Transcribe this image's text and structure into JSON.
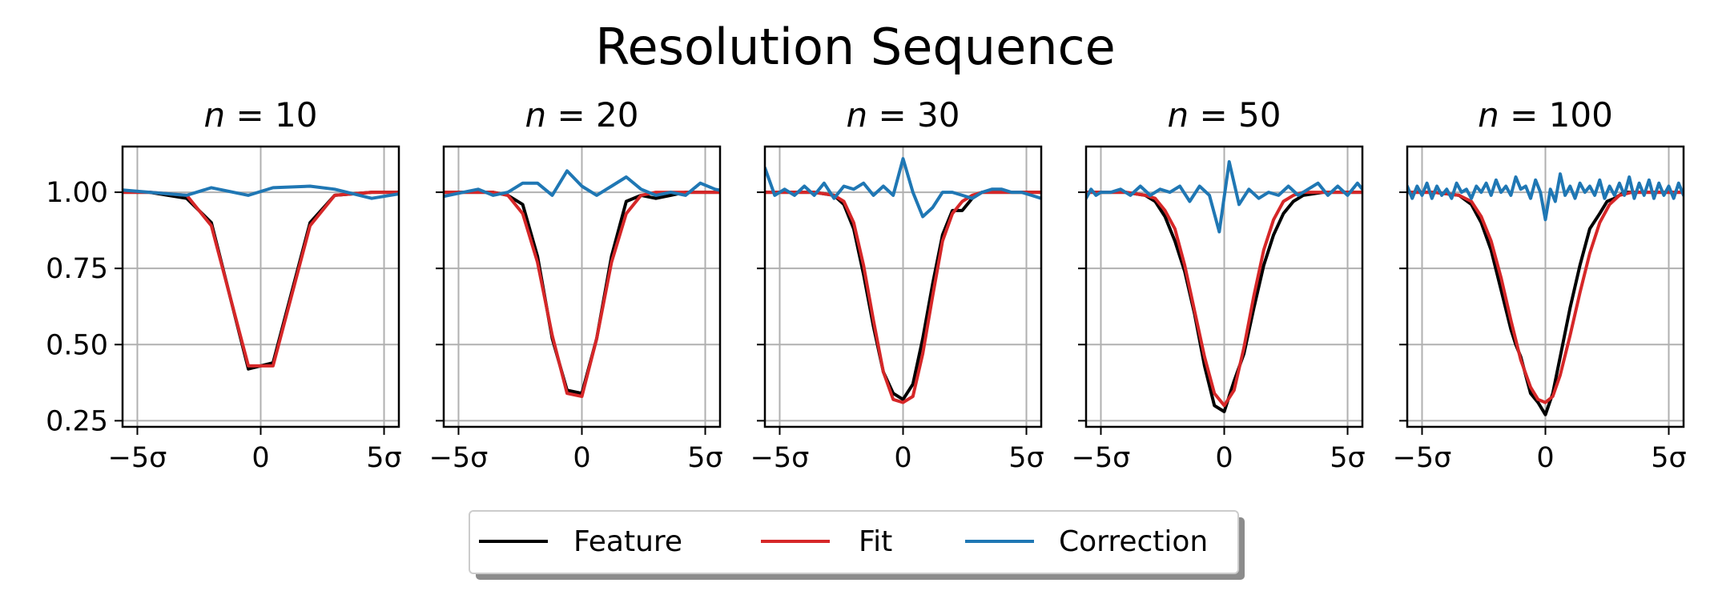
{
  "figure": {
    "title": "Resolution Sequence",
    "x_tick_labels": [
      "−5σ",
      "0",
      "5σ"
    ],
    "y_tick_labels": [
      "0.25",
      "0.50",
      "0.75",
      "1.00"
    ]
  },
  "legend": {
    "placement": "bottom-center",
    "entries": [
      {
        "label": "Feature",
        "color": "#000000"
      },
      {
        "label": "Fit",
        "color": "#d62728"
      },
      {
        "label": "Correction",
        "color": "#1f77b4"
      }
    ]
  },
  "chart_data": [
    {
      "type": "line",
      "title_var": "n",
      "title_value": "= 10",
      "xlim": [
        -5.6,
        5.6
      ],
      "ylim": [
        0.23,
        1.15
      ],
      "grid": true,
      "series": [
        {
          "name": "Feature",
          "color": "#000000",
          "x": [
            -6.0,
            -4.5,
            -3.0,
            -2.0,
            -0.5,
            0.5,
            2.0,
            3.0,
            4.5,
            6.0
          ],
          "y": [
            1.0,
            1.0,
            0.98,
            0.9,
            0.42,
            0.44,
            0.9,
            0.99,
            1.0,
            1.0
          ]
        },
        {
          "name": "Fit",
          "color": "#d62728",
          "x": [
            -6.0,
            -4.5,
            -3.0,
            -2.0,
            -0.5,
            0.5,
            2.0,
            3.0,
            4.5,
            6.0
          ],
          "y": [
            1.0,
            1.0,
            0.99,
            0.89,
            0.43,
            0.43,
            0.89,
            0.99,
            1.0,
            1.0
          ]
        },
        {
          "name": "Correction",
          "color": "#1f77b4",
          "x": [
            -6.0,
            -4.5,
            -3.0,
            -2.0,
            -0.5,
            0.5,
            2.0,
            3.0,
            4.5,
            6.0
          ],
          "y": [
            1.01,
            1.0,
            0.99,
            1.015,
            0.99,
            1.015,
            1.02,
            1.01,
            0.98,
            1.0
          ]
        }
      ]
    },
    {
      "type": "line",
      "title_var": "n",
      "title_value": "= 20",
      "xlim": [
        -5.6,
        5.6
      ],
      "ylim": [
        0.23,
        1.15
      ],
      "grid": true,
      "series": [
        {
          "name": "Feature",
          "color": "#000000",
          "x": [
            -6.0,
            -4.8,
            -4.2,
            -3.6,
            -3.0,
            -2.4,
            -1.8,
            -1.2,
            -0.6,
            0.0,
            0.6,
            1.2,
            1.8,
            2.4,
            3.0,
            3.6,
            4.2,
            4.8,
            5.4,
            6.0
          ],
          "y": [
            1.0,
            1.0,
            1.0,
            1.0,
            0.99,
            0.96,
            0.79,
            0.52,
            0.35,
            0.34,
            0.52,
            0.79,
            0.97,
            0.99,
            0.98,
            0.99,
            1.0,
            1.0,
            1.0,
            1.0
          ]
        },
        {
          "name": "Fit",
          "color": "#d62728",
          "x": [
            -6.0,
            -4.8,
            -4.2,
            -3.6,
            -3.0,
            -2.4,
            -1.8,
            -1.2,
            -0.6,
            0.0,
            0.6,
            1.2,
            1.8,
            2.4,
            3.0,
            3.6,
            4.2,
            4.8,
            5.4,
            6.0
          ],
          "y": [
            1.0,
            1.0,
            1.0,
            1.0,
            0.99,
            0.93,
            0.77,
            0.53,
            0.34,
            0.33,
            0.52,
            0.77,
            0.93,
            0.99,
            1.0,
            1.0,
            1.0,
            1.0,
            1.0,
            1.0
          ]
        },
        {
          "name": "Correction",
          "color": "#1f77b4",
          "x": [
            -6.0,
            -4.8,
            -4.2,
            -3.6,
            -3.0,
            -2.4,
            -1.8,
            -1.2,
            -0.6,
            0.0,
            0.6,
            1.2,
            1.8,
            2.4,
            3.0,
            3.6,
            4.2,
            4.8,
            5.4,
            6.0
          ],
          "y": [
            0.98,
            1.0,
            1.01,
            0.99,
            1.0,
            1.03,
            1.03,
            0.99,
            1.07,
            1.02,
            0.99,
            1.02,
            1.05,
            1.01,
            0.99,
            1.0,
            0.99,
            1.03,
            1.01,
            1.0
          ]
        }
      ]
    },
    {
      "type": "line",
      "title_var": "n",
      "title_value": "= 30",
      "xlim": [
        -5.6,
        5.6
      ],
      "ylim": [
        0.23,
        1.15
      ],
      "grid": true,
      "series": [
        {
          "name": "Feature",
          "color": "#000000",
          "x": [
            -6.0,
            -5.2,
            -4.4,
            -3.6,
            -2.8,
            -2.4,
            -2.0,
            -1.6,
            -1.2,
            -0.8,
            -0.4,
            0.0,
            0.4,
            0.8,
            1.2,
            1.6,
            2.0,
            2.4,
            2.8,
            3.2,
            3.6,
            4.4,
            5.2,
            6.0
          ],
          "y": [
            1.0,
            1.0,
            1.0,
            1.0,
            0.99,
            0.96,
            0.88,
            0.73,
            0.56,
            0.41,
            0.34,
            0.32,
            0.37,
            0.52,
            0.7,
            0.86,
            0.94,
            0.94,
            0.98,
            1.0,
            1.0,
            1.0,
            1.0,
            1.0
          ]
        },
        {
          "name": "Fit",
          "color": "#d62728",
          "x": [
            -6.0,
            -5.2,
            -4.4,
            -3.6,
            -2.8,
            -2.4,
            -2.0,
            -1.6,
            -1.2,
            -0.8,
            -0.4,
            0.0,
            0.4,
            0.8,
            1.2,
            1.6,
            2.0,
            2.4,
            2.8,
            3.2,
            3.6,
            4.4,
            5.2,
            6.0
          ],
          "y": [
            1.0,
            1.0,
            1.0,
            1.0,
            0.99,
            0.97,
            0.9,
            0.76,
            0.58,
            0.41,
            0.32,
            0.31,
            0.33,
            0.47,
            0.66,
            0.84,
            0.93,
            0.97,
            0.99,
            1.0,
            1.0,
            1.0,
            1.0,
            1.0
          ]
        },
        {
          "name": "Correction",
          "color": "#1f77b4",
          "x": [
            -6.0,
            -5.6,
            -5.2,
            -4.8,
            -4.4,
            -4.0,
            -3.6,
            -3.2,
            -2.8,
            -2.4,
            -2.0,
            -1.6,
            -1.2,
            -0.8,
            -0.4,
            0.0,
            0.4,
            0.8,
            1.2,
            1.6,
            2.0,
            2.4,
            2.8,
            3.2,
            3.6,
            4.0,
            4.4,
            4.8,
            5.2,
            5.6,
            6.0
          ],
          "y": [
            1.0,
            1.08,
            0.99,
            1.01,
            0.99,
            1.02,
            0.99,
            1.03,
            0.98,
            1.02,
            1.01,
            1.03,
            0.99,
            1.02,
            0.99,
            1.11,
            1.0,
            0.92,
            0.95,
            1.0,
            1.0,
            0.99,
            0.98,
            1.0,
            1.01,
            1.01,
            1.0,
            1.0,
            0.99,
            0.98,
            0.97
          ]
        }
      ]
    },
    {
      "type": "line",
      "title_var": "n",
      "title_value": "= 50",
      "xlim": [
        -5.6,
        5.6
      ],
      "ylim": [
        0.23,
        1.15
      ],
      "grid": true,
      "series": [
        {
          "name": "Feature",
          "color": "#000000",
          "x": [
            -6.0,
            -5.0,
            -4.0,
            -3.2,
            -2.8,
            -2.4,
            -2.0,
            -1.6,
            -1.2,
            -0.8,
            -0.4,
            0.0,
            0.4,
            0.8,
            1.2,
            1.6,
            2.0,
            2.4,
            2.8,
            3.2,
            4.0,
            5.0,
            6.0
          ],
          "y": [
            1.0,
            1.0,
            1.0,
            0.99,
            0.97,
            0.92,
            0.84,
            0.74,
            0.6,
            0.43,
            0.3,
            0.28,
            0.38,
            0.47,
            0.62,
            0.76,
            0.86,
            0.93,
            0.97,
            0.99,
            1.0,
            1.0,
            1.0
          ]
        },
        {
          "name": "Fit",
          "color": "#d62728",
          "x": [
            -6.0,
            -5.0,
            -4.0,
            -3.2,
            -2.8,
            -2.4,
            -2.0,
            -1.6,
            -1.2,
            -0.8,
            -0.4,
            0.0,
            0.4,
            0.8,
            1.2,
            1.6,
            2.0,
            2.4,
            2.8,
            3.2,
            4.0,
            5.0,
            6.0
          ],
          "y": [
            1.0,
            1.0,
            1.0,
            0.99,
            0.98,
            0.94,
            0.88,
            0.76,
            0.61,
            0.46,
            0.34,
            0.3,
            0.35,
            0.49,
            0.66,
            0.81,
            0.91,
            0.97,
            0.99,
            1.0,
            1.0,
            1.0,
            1.0
          ]
        },
        {
          "name": "Correction",
          "color": "#1f77b4",
          "x": [
            -6.0,
            -5.8,
            -5.6,
            -5.4,
            -5.2,
            -5.0,
            -4.6,
            -4.2,
            -3.8,
            -3.4,
            -3.0,
            -2.6,
            -2.2,
            -1.8,
            -1.4,
            -1.0,
            -0.6,
            -0.2,
            0.2,
            0.6,
            1.0,
            1.4,
            1.8,
            2.2,
            2.6,
            3.0,
            3.4,
            3.8,
            4.2,
            4.6,
            5.0,
            5.4,
            5.8,
            6.0
          ],
          "y": [
            1.0,
            1.03,
            0.98,
            1.01,
            0.99,
            1.0,
            1.0,
            1.01,
            0.99,
            1.02,
            0.99,
            1.01,
            1.0,
            1.02,
            0.97,
            1.02,
            0.99,
            0.87,
            1.1,
            0.96,
            1.01,
            0.98,
            1.0,
            0.99,
            1.02,
            0.99,
            1.01,
            1.03,
            0.99,
            1.02,
            0.99,
            1.03,
            0.99,
            1.0
          ]
        }
      ]
    },
    {
      "type": "line",
      "title_var": "n",
      "title_value": "= 100",
      "xlim": [
        -5.6,
        5.6
      ],
      "ylim": [
        0.23,
        1.15
      ],
      "grid": true,
      "series": [
        {
          "name": "Feature",
          "color": "#000000",
          "x": [
            -6.0,
            -4.5,
            -3.5,
            -3.0,
            -2.6,
            -2.2,
            -1.8,
            -1.4,
            -1.2,
            -1.0,
            -0.6,
            -0.3,
            0.0,
            0.3,
            0.6,
            1.0,
            1.4,
            1.8,
            2.2,
            2.5,
            2.8,
            3.2,
            3.6,
            4.5,
            6.0
          ],
          "y": [
            1.0,
            1.0,
            0.99,
            0.96,
            0.9,
            0.81,
            0.68,
            0.55,
            0.5,
            0.46,
            0.34,
            0.31,
            0.27,
            0.34,
            0.46,
            0.62,
            0.76,
            0.88,
            0.93,
            0.97,
            0.98,
            1.0,
            1.0,
            1.0,
            1.0
          ]
        },
        {
          "name": "Fit",
          "color": "#d62728",
          "x": [
            -6.0,
            -4.5,
            -3.5,
            -3.0,
            -2.6,
            -2.2,
            -1.8,
            -1.4,
            -1.0,
            -0.6,
            -0.3,
            0.0,
            0.3,
            0.6,
            1.0,
            1.4,
            1.8,
            2.2,
            2.6,
            3.0,
            3.5,
            4.5,
            6.0
          ],
          "y": [
            1.0,
            1.0,
            0.99,
            0.97,
            0.92,
            0.84,
            0.72,
            0.58,
            0.45,
            0.36,
            0.32,
            0.31,
            0.33,
            0.4,
            0.53,
            0.67,
            0.8,
            0.9,
            0.96,
            0.99,
            1.0,
            1.0,
            1.0
          ]
        },
        {
          "name": "Correction",
          "color": "#1f77b4",
          "x": [
            -6.0,
            -5.8,
            -5.6,
            -5.4,
            -5.2,
            -5.0,
            -4.8,
            -4.6,
            -4.4,
            -4.2,
            -4.0,
            -3.8,
            -3.6,
            -3.4,
            -3.2,
            -3.0,
            -2.8,
            -2.6,
            -2.4,
            -2.2,
            -2.0,
            -1.8,
            -1.6,
            -1.4,
            -1.2,
            -1.0,
            -0.8,
            -0.6,
            -0.4,
            -0.2,
            0.0,
            0.2,
            0.4,
            0.6,
            0.8,
            1.0,
            1.2,
            1.4,
            1.6,
            1.8,
            2.0,
            2.2,
            2.4,
            2.6,
            2.8,
            3.0,
            3.2,
            3.4,
            3.6,
            3.8,
            4.0,
            4.2,
            4.4,
            4.6,
            4.8,
            5.0,
            5.2,
            5.4,
            5.6,
            5.8,
            6.0
          ],
          "y": [
            1.0,
            0.99,
            1.02,
            0.98,
            1.02,
            0.99,
            1.03,
            0.98,
            1.02,
            0.99,
            1.01,
            0.98,
            1.03,
            1.0,
            1.01,
            0.98,
            1.02,
            1.0,
            1.03,
            0.99,
            1.04,
            1.0,
            1.02,
            0.99,
            1.05,
            1.01,
            1.02,
            0.98,
            1.04,
            1.0,
            0.91,
            1.01,
            0.97,
            1.06,
            0.99,
            1.02,
            0.98,
            1.03,
            1.0,
            1.02,
            0.99,
            1.04,
            0.98,
            1.02,
            0.99,
            1.03,
            0.99,
            1.05,
            0.98,
            1.03,
            0.99,
            1.04,
            0.98,
            1.03,
            0.99,
            1.02,
            0.98,
            1.03,
            0.99,
            1.02,
            1.0
          ]
        }
      ]
    }
  ]
}
